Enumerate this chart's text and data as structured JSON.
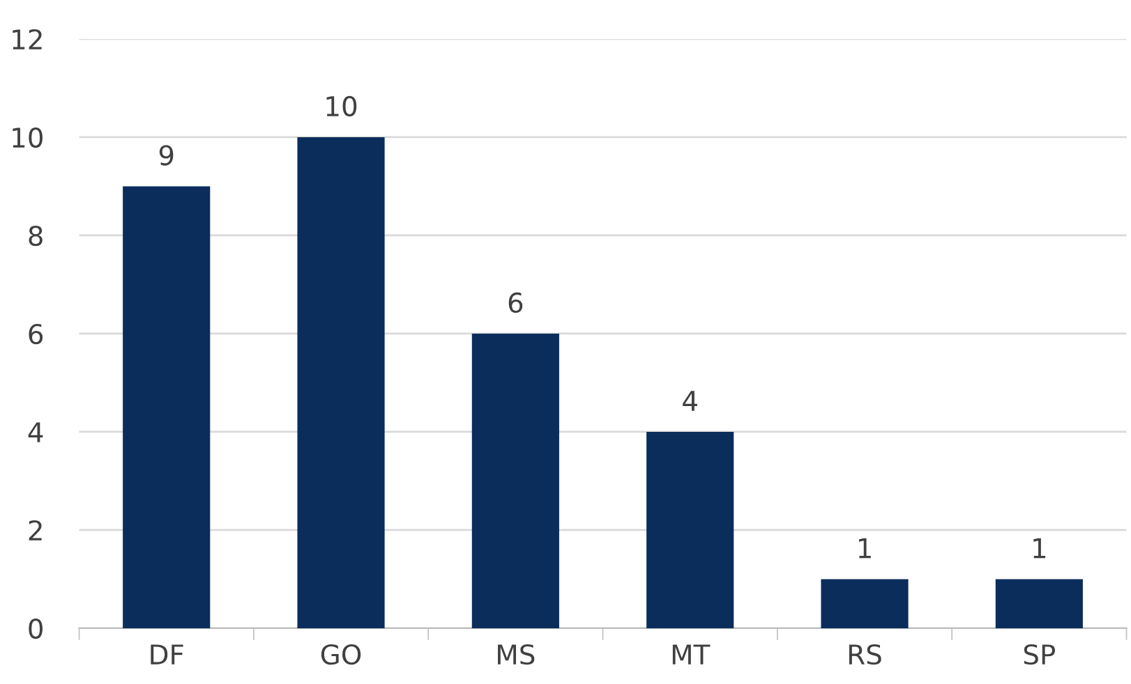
{
  "chart_data": {
    "type": "bar",
    "categories": [
      "DF",
      "GO",
      "MS",
      "MT",
      "RS",
      "SP"
    ],
    "values": [
      9,
      10,
      6,
      4,
      1,
      1
    ],
    "color": "#0b2d5c",
    "ylim": [
      0,
      12
    ],
    "yticks": [
      0,
      2,
      4,
      6,
      8,
      10,
      12
    ],
    "grid": "y",
    "data_labels": true
  }
}
